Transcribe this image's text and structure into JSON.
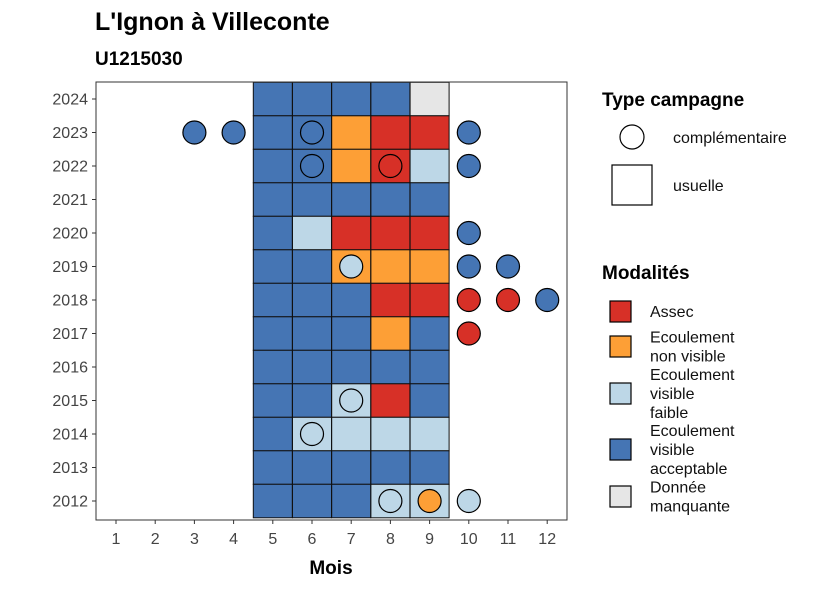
{
  "title": "L'Ignon à Villeconte",
  "subtitle": "U1215030",
  "chart_data": {
    "type": "heatmap",
    "xlabel": "Mois",
    "ylabel": "",
    "x_ticks": [
      "1",
      "2",
      "3",
      "4",
      "5",
      "6",
      "7",
      "8",
      "9",
      "10",
      "11",
      "12"
    ],
    "y_ticks": [
      "2012",
      "2013",
      "2014",
      "2015",
      "2016",
      "2017",
      "2018",
      "2019",
      "2020",
      "2021",
      "2022",
      "2023",
      "2024"
    ],
    "colors": {
      "Assec": "#d73027",
      "Ecoulement non visible": "#fd9f36",
      "Ecoulement visible faible": "#bdd7e7",
      "Ecoulement visible acceptable": "#4575b4",
      "Donnée manquante": "#e6e6e6"
    },
    "usuelle": [
      {
        "year": 2024,
        "months": [
          [
            "5",
            "Ecoulement visible acceptable"
          ],
          [
            "6",
            "Ecoulement visible acceptable"
          ],
          [
            "7",
            "Ecoulement visible acceptable"
          ],
          [
            "8",
            "Ecoulement visible acceptable"
          ],
          [
            "9",
            "Donnée manquante"
          ]
        ]
      },
      {
        "year": 2023,
        "months": [
          [
            "5",
            "Ecoulement visible acceptable"
          ],
          [
            "6",
            "Ecoulement visible acceptable"
          ],
          [
            "7",
            "Ecoulement non visible"
          ],
          [
            "8",
            "Assec"
          ],
          [
            "9",
            "Assec"
          ]
        ]
      },
      {
        "year": 2022,
        "months": [
          [
            "5",
            "Ecoulement visible acceptable"
          ],
          [
            "6",
            "Ecoulement visible acceptable"
          ],
          [
            "7",
            "Ecoulement non visible"
          ],
          [
            "8",
            "Assec"
          ],
          [
            "9",
            "Ecoulement visible faible"
          ]
        ]
      },
      {
        "year": 2021,
        "months": [
          [
            "5",
            "Ecoulement visible acceptable"
          ],
          [
            "6",
            "Ecoulement visible acceptable"
          ],
          [
            "7",
            "Ecoulement visible acceptable"
          ],
          [
            "8",
            "Ecoulement visible acceptable"
          ],
          [
            "9",
            "Ecoulement visible acceptable"
          ]
        ]
      },
      {
        "year": 2020,
        "months": [
          [
            "5",
            "Ecoulement visible acceptable"
          ],
          [
            "6",
            "Ecoulement visible faible"
          ],
          [
            "7",
            "Assec"
          ],
          [
            "8",
            "Assec"
          ],
          [
            "9",
            "Assec"
          ]
        ]
      },
      {
        "year": 2019,
        "months": [
          [
            "5",
            "Ecoulement visible acceptable"
          ],
          [
            "6",
            "Ecoulement visible acceptable"
          ],
          [
            "7",
            "Ecoulement non visible"
          ],
          [
            "8",
            "Ecoulement non visible"
          ],
          [
            "9",
            "Ecoulement non visible"
          ]
        ]
      },
      {
        "year": 2018,
        "months": [
          [
            "5",
            "Ecoulement visible acceptable"
          ],
          [
            "6",
            "Ecoulement visible acceptable"
          ],
          [
            "7",
            "Ecoulement visible acceptable"
          ],
          [
            "8",
            "Assec"
          ],
          [
            "9",
            "Assec"
          ]
        ]
      },
      {
        "year": 2017,
        "months": [
          [
            "5",
            "Ecoulement visible acceptable"
          ],
          [
            "6",
            "Ecoulement visible acceptable"
          ],
          [
            "7",
            "Ecoulement visible acceptable"
          ],
          [
            "8",
            "Ecoulement non visible"
          ],
          [
            "9",
            "Ecoulement visible acceptable"
          ]
        ]
      },
      {
        "year": 2016,
        "months": [
          [
            "5",
            "Ecoulement visible acceptable"
          ],
          [
            "6",
            "Ecoulement visible acceptable"
          ],
          [
            "7",
            "Ecoulement visible acceptable"
          ],
          [
            "8",
            "Ecoulement visible acceptable"
          ],
          [
            "9",
            "Ecoulement visible acceptable"
          ]
        ]
      },
      {
        "year": 2015,
        "months": [
          [
            "5",
            "Ecoulement visible acceptable"
          ],
          [
            "6",
            "Ecoulement visible acceptable"
          ],
          [
            "7",
            "Ecoulement visible faible"
          ],
          [
            "8",
            "Assec"
          ],
          [
            "9",
            "Ecoulement visible acceptable"
          ]
        ]
      },
      {
        "year": 2014,
        "months": [
          [
            "5",
            "Ecoulement visible acceptable"
          ],
          [
            "6",
            "Ecoulement visible faible"
          ],
          [
            "7",
            "Ecoulement visible faible"
          ],
          [
            "8",
            "Ecoulement visible faible"
          ],
          [
            "9",
            "Ecoulement visible faible"
          ]
        ]
      },
      {
        "year": 2013,
        "months": [
          [
            "5",
            "Ecoulement visible acceptable"
          ],
          [
            "6",
            "Ecoulement visible acceptable"
          ],
          [
            "7",
            "Ecoulement visible acceptable"
          ],
          [
            "8",
            "Ecoulement visible acceptable"
          ],
          [
            "9",
            "Ecoulement visible acceptable"
          ]
        ]
      },
      {
        "year": 2012,
        "months": [
          [
            "5",
            "Ecoulement visible acceptable"
          ],
          [
            "6",
            "Ecoulement visible acceptable"
          ],
          [
            "7",
            "Ecoulement visible acceptable"
          ],
          [
            "8",
            "Ecoulement visible faible"
          ],
          [
            "9",
            "Ecoulement visible faible"
          ]
        ]
      }
    ],
    "complementaire": [
      {
        "year": 2023,
        "month": "3",
        "value": "Ecoulement visible acceptable"
      },
      {
        "year": 2023,
        "month": "4",
        "value": "Ecoulement visible acceptable"
      },
      {
        "year": 2023,
        "month": "6",
        "value": "Ecoulement visible acceptable"
      },
      {
        "year": 2023,
        "month": "10",
        "value": "Ecoulement visible acceptable"
      },
      {
        "year": 2022,
        "month": "6",
        "value": "Ecoulement visible acceptable"
      },
      {
        "year": 2022,
        "month": "8",
        "value": "Assec"
      },
      {
        "year": 2022,
        "month": "10",
        "value": "Ecoulement visible acceptable"
      },
      {
        "year": 2020,
        "month": "10",
        "value": "Ecoulement visible acceptable"
      },
      {
        "year": 2019,
        "month": "7",
        "value": "Ecoulement visible faible"
      },
      {
        "year": 2019,
        "month": "10",
        "value": "Ecoulement visible acceptable"
      },
      {
        "year": 2019,
        "month": "11",
        "value": "Ecoulement visible acceptable"
      },
      {
        "year": 2018,
        "month": "10",
        "value": "Assec"
      },
      {
        "year": 2018,
        "month": "11",
        "value": "Assec"
      },
      {
        "year": 2018,
        "month": "12",
        "value": "Ecoulement visible acceptable"
      },
      {
        "year": 2017,
        "month": "10",
        "value": "Assec"
      },
      {
        "year": 2015,
        "month": "7",
        "value": "Ecoulement visible faible"
      },
      {
        "year": 2014,
        "month": "6",
        "value": "Ecoulement visible faible"
      },
      {
        "year": 2012,
        "month": "8",
        "value": "Ecoulement visible faible"
      },
      {
        "year": 2012,
        "month": "9",
        "value": "Ecoulement non visible"
      },
      {
        "year": 2012,
        "month": "10",
        "value": "Ecoulement visible faible"
      }
    ],
    "legend": {
      "placement": "right",
      "type_title": "Type campagne",
      "type_items": [
        {
          "label": "complémentaire",
          "shape": "circle"
        },
        {
          "label": "usuelle",
          "shape": "square"
        }
      ],
      "mod_title": "Modalités",
      "mod_items": [
        {
          "key": "Assec",
          "lines": [
            "Assec"
          ]
        },
        {
          "key": "Ecoulement non visible",
          "lines": [
            "Ecoulement",
            "non visible"
          ]
        },
        {
          "key": "Ecoulement visible faible",
          "lines": [
            "Ecoulement",
            "visible",
            "faible"
          ]
        },
        {
          "key": "Ecoulement visible acceptable",
          "lines": [
            "Ecoulement",
            "visible",
            "acceptable"
          ]
        },
        {
          "key": "Donnée manquante",
          "lines": [
            "Donnée",
            "manquante"
          ]
        }
      ]
    }
  }
}
